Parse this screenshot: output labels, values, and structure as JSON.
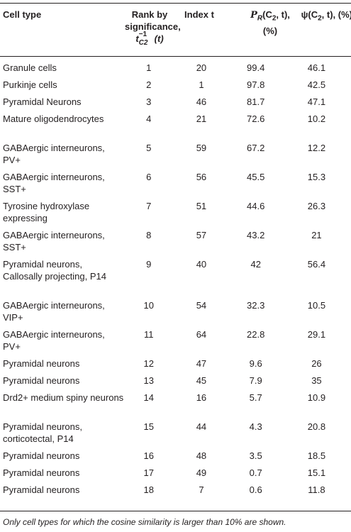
{
  "header": {
    "cell_type": "Cell type",
    "rank_line1": "Rank by",
    "rank_line2": "significance,",
    "rank_line3": "t",
    "rank_line3_sup": "−1",
    "rank_line3_sub": "C2",
    "rank_line3_tail": "(t)",
    "index": "Index t",
    "pr_line1": "P",
    "pr_sub": "R",
    "pr_args": "(C",
    "pr_args_sub": "2",
    "pr_args_tail": ", t),",
    "pr_line2": "(%)",
    "psi": "ψ(C",
    "psi_sub": "2",
    "psi_tail": ", t), (%)"
  },
  "rows": [
    {
      "name": "Granule cells",
      "rank": "1",
      "index": "20",
      "pr": "99.4",
      "psi": "46.1",
      "h": 24
    },
    {
      "name": "Purkinje cells",
      "rank": "2",
      "index": "1",
      "pr": "97.8",
      "psi": "42.5",
      "h": 24
    },
    {
      "name": "Pyramidal Neurons",
      "rank": "3",
      "index": "46",
      "pr": "81.7",
      "psi": "47.1",
      "h": 24
    },
    {
      "name": "Mature oligodendrocytes",
      "rank": "4",
      "index": "21",
      "pr": "72.6",
      "psi": "10.2",
      "h": 41
    },
    {
      "name": "GABAergic interneurons, PV+",
      "rank": "5",
      "index": "59",
      "pr": "67.2",
      "psi": "12.2",
      "h": 41
    },
    {
      "name": "GABAergic interneurons, SST+",
      "rank": "6",
      "index": "56",
      "pr": "45.5",
      "psi": "15.3",
      "h": 41
    },
    {
      "name": "Tyrosine hydroxylase expressing",
      "rank": "7",
      "index": "51",
      "pr": "44.6",
      "psi": "26.3",
      "h": 41
    },
    {
      "name": "GABAergic interneurons, SST+",
      "rank": "8",
      "index": "57",
      "pr": "43.2",
      "psi": "21",
      "h": 41
    },
    {
      "name": "Pyramidal neurons, Callosally projecting, P14",
      "rank": "9",
      "index": "40",
      "pr": "42",
      "psi": "56.4",
      "h": 58
    },
    {
      "name": "GABAergic interneurons, VIP+",
      "rank": "10",
      "index": "54",
      "pr": "32.3",
      "psi": "10.5",
      "h": 41
    },
    {
      "name": "GABAergic interneurons, PV+",
      "rank": "11",
      "index": "64",
      "pr": "22.8",
      "psi": "29.1",
      "h": 41
    },
    {
      "name": "Pyramidal neurons",
      "rank": "12",
      "index": "47",
      "pr": "9.6",
      "psi": "26",
      "h": 24
    },
    {
      "name": "Pyramidal neurons",
      "rank": "13",
      "index": "45",
      "pr": "7.9",
      "psi": "35",
      "h": 24
    },
    {
      "name": "Drd2+ medium spiny neurons",
      "rank": "14",
      "index": "16",
      "pr": "5.7",
      "psi": "10.9",
      "h": 41
    },
    {
      "name": "Pyramidal neurons, corticotectal, P14",
      "rank": "15",
      "index": "44",
      "pr": "4.3",
      "psi": "20.8",
      "h": 41
    },
    {
      "name": "Pyramidal neurons",
      "rank": "16",
      "index": "48",
      "pr": "3.5",
      "psi": "18.5",
      "h": 24
    },
    {
      "name": "Pyramidal neurons",
      "rank": "17",
      "index": "49",
      "pr": "0.7",
      "psi": "15.1",
      "h": 24
    },
    {
      "name": "Pyramidal neurons",
      "rank": "18",
      "index": "7",
      "pr": "0.6",
      "psi": "11.8",
      "h": 24
    }
  ],
  "footnote": "Only cell types for which the cosine similarity is larger than 10% are shown."
}
